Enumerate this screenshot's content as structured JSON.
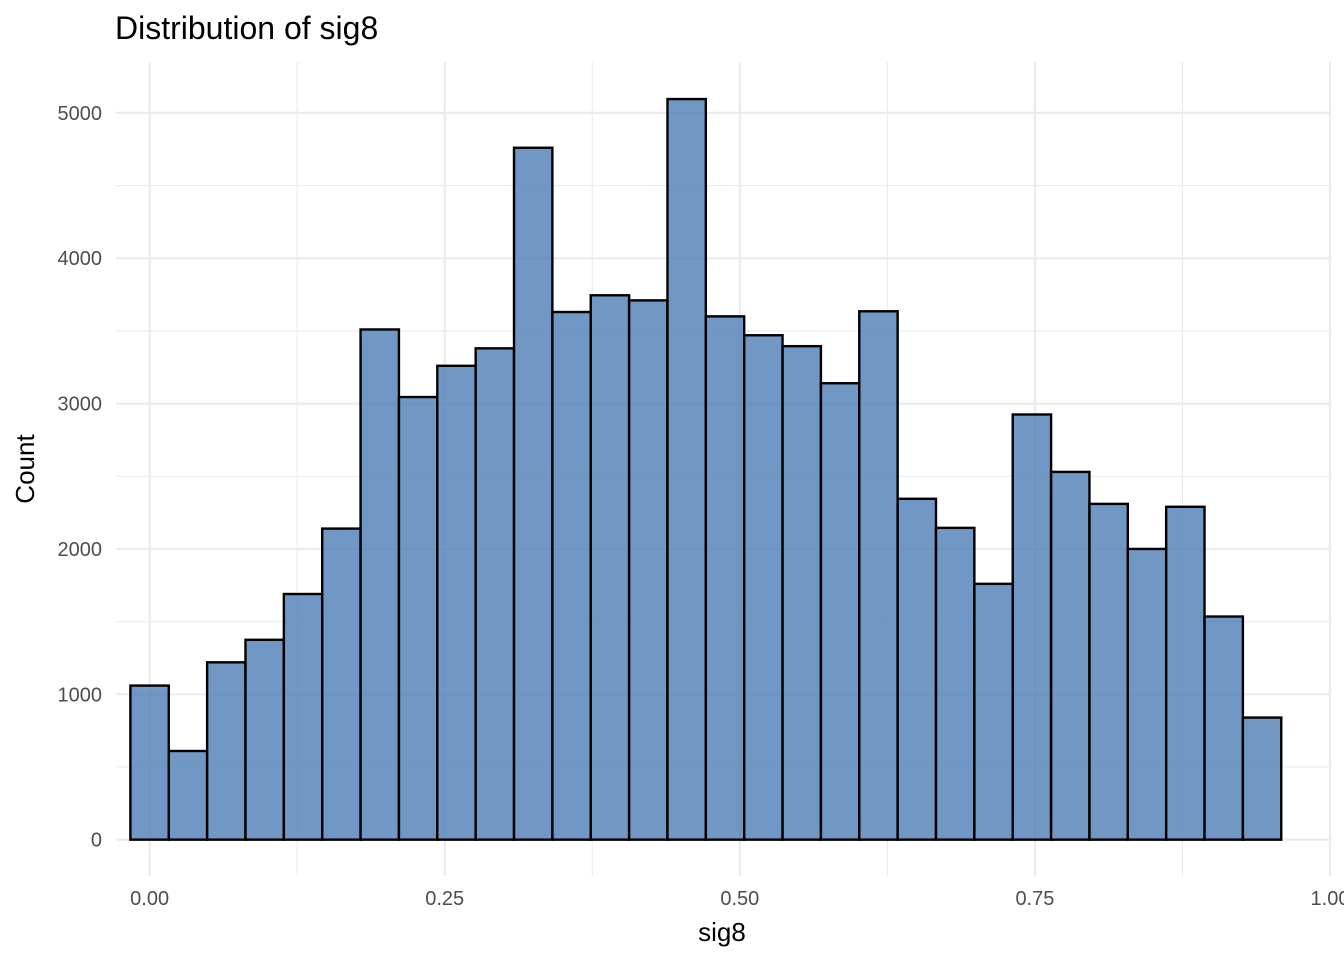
{
  "chart_data": {
    "type": "bar",
    "title": "Distribution of sig8",
    "xlabel": "sig8",
    "ylabel": "Count",
    "bar_color": "#4D7EB5",
    "bar_outline": "#000000",
    "grid": true,
    "xlim": [
      -0.0285,
      1.0
    ],
    "ylim": [
      -250,
      5350
    ],
    "x_ticks": [
      0,
      0.25,
      0.5,
      0.75,
      1.0
    ],
    "x_tick_labels": [
      "0.00",
      "0.25",
      "0.50",
      "0.75",
      "1.00"
    ],
    "y_ticks": [
      0,
      1000,
      2000,
      3000,
      4000,
      5000
    ],
    "y_tick_labels": [
      "0",
      "1000",
      "2000",
      "3000",
      "4000",
      "5000"
    ],
    "bin_width": 0.0325,
    "bins": [
      {
        "x0": -0.0163,
        "x1": 0.0162,
        "count": 1060
      },
      {
        "x0": 0.0162,
        "x1": 0.0487,
        "count": 610
      },
      {
        "x0": 0.0487,
        "x1": 0.0812,
        "count": 1220
      },
      {
        "x0": 0.0812,
        "x1": 0.1137,
        "count": 1375
      },
      {
        "x0": 0.1137,
        "x1": 0.1462,
        "count": 1690
      },
      {
        "x0": 0.1462,
        "x1": 0.1787,
        "count": 2140
      },
      {
        "x0": 0.1787,
        "x1": 0.2112,
        "count": 3510
      },
      {
        "x0": 0.2112,
        "x1": 0.2437,
        "count": 3045
      },
      {
        "x0": 0.2437,
        "x1": 0.2762,
        "count": 3260
      },
      {
        "x0": 0.2762,
        "x1": 0.3087,
        "count": 3380
      },
      {
        "x0": 0.3087,
        "x1": 0.3412,
        "count": 4760
      },
      {
        "x0": 0.3412,
        "x1": 0.3737,
        "count": 3630
      },
      {
        "x0": 0.3737,
        "x1": 0.4062,
        "count": 3745
      },
      {
        "x0": 0.4062,
        "x1": 0.4387,
        "count": 3710
      },
      {
        "x0": 0.4387,
        "x1": 0.4712,
        "count": 5095
      },
      {
        "x0": 0.4712,
        "x1": 0.5037,
        "count": 3600
      },
      {
        "x0": 0.5037,
        "x1": 0.5362,
        "count": 3470
      },
      {
        "x0": 0.5362,
        "x1": 0.5687,
        "count": 3395
      },
      {
        "x0": 0.5687,
        "x1": 0.6012,
        "count": 3140
      },
      {
        "x0": 0.6012,
        "x1": 0.6337,
        "count": 3635
      },
      {
        "x0": 0.6337,
        "x1": 0.6662,
        "count": 2345
      },
      {
        "x0": 0.6662,
        "x1": 0.6987,
        "count": 2145
      },
      {
        "x0": 0.6987,
        "x1": 0.7312,
        "count": 1760
      },
      {
        "x0": 0.7312,
        "x1": 0.7637,
        "count": 2925
      },
      {
        "x0": 0.7637,
        "x1": 0.7962,
        "count": 2530
      },
      {
        "x0": 0.7962,
        "x1": 0.8287,
        "count": 2310
      },
      {
        "x0": 0.8287,
        "x1": 0.8612,
        "count": 2000
      },
      {
        "x0": 0.8612,
        "x1": 0.8937,
        "count": 2290
      },
      {
        "x0": 0.8937,
        "x1": 0.9262,
        "count": 1535
      },
      {
        "x0": 0.9262,
        "x1": 0.9587,
        "count": 840
      }
    ]
  }
}
